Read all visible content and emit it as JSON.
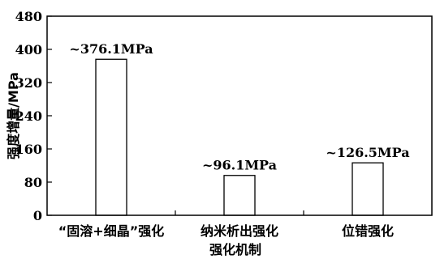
{
  "chart_data": {
    "type": "bar",
    "categories": [
      "“固溶+细晶”强化",
      "纳米析出强化",
      "位错强化"
    ],
    "values": [
      376.1,
      96.1,
      126.5
    ],
    "data_labels": [
      "~376.1MPa",
      "~96.1MPa",
      "~126.5MPa"
    ],
    "xlabel": "强化机制",
    "ylabel": "强度增量/MPa",
    "ylim": [
      0,
      480
    ],
    "yticks": [
      0,
      80,
      160,
      240,
      320,
      400,
      480
    ],
    "grid": false,
    "legend": "none"
  }
}
